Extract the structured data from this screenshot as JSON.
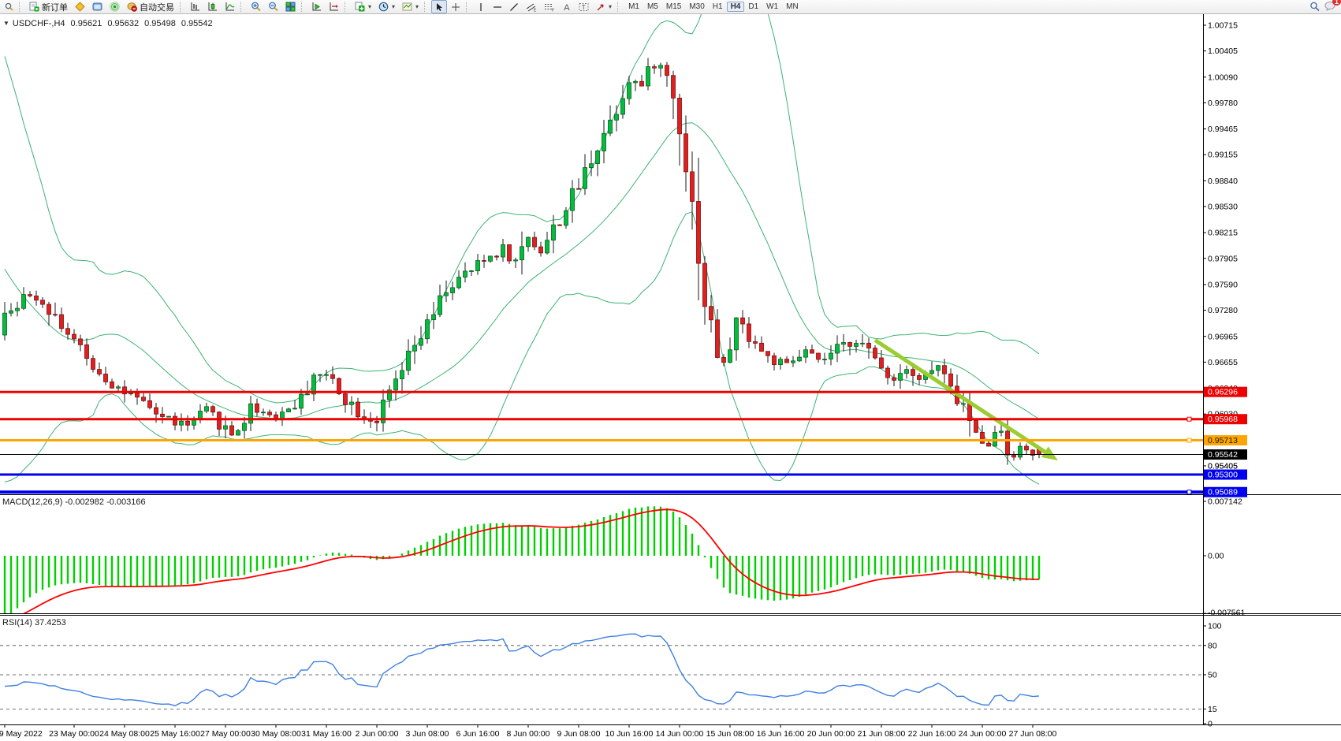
{
  "toolbar": {
    "new_order_label": "新订单",
    "autotrading_label": "自动交易",
    "timeframes": [
      "M1",
      "M5",
      "M15",
      "M30",
      "H1",
      "H4",
      "D1",
      "W1",
      "MN"
    ],
    "active_timeframe": "H4",
    "notification_badge": "1"
  },
  "chart_data": {
    "type": "candlestick",
    "symbol_label": "USDCHF-,H4",
    "current_bar": {
      "open": "0.95621",
      "high": "0.95632",
      "low": "0.95498",
      "close": "0.95542"
    },
    "price_axis_ticks": [
      "1.00715",
      "1.00405",
      "1.00090",
      "0.99780",
      "0.99465",
      "0.99155",
      "0.98840",
      "0.98530",
      "0.98215",
      "0.97905",
      "0.97590",
      "0.97280",
      "0.96965",
      "0.96655",
      "0.96340",
      "0.96030",
      "0.95720",
      "0.95405"
    ],
    "time_axis": {
      "labels": [
        "19 May 2022",
        "23 May 00:00",
        "24 May 08:00",
        "25 May 16:00",
        "27 May 00:00",
        "30 May 08:00",
        "31 May 16:00",
        "2 Jun 00:00",
        "3 Jun 08:00",
        "6 Jun 16:00",
        "8 Jun 00:00",
        "9 Jun 08:00",
        "10 Jun 16:00",
        "14 Jun 00:00",
        "15 Jun 08:00",
        "16 Jun 16:00",
        "20 Jun 00:00",
        "21 Jun 08:00",
        "22 Jun 16:00",
        "24 Jun 00:00",
        "27 Jun 08:00"
      ],
      "bar_indices": [
        0,
        11,
        19,
        27,
        35,
        43,
        51,
        59,
        67,
        75,
        83,
        91,
        99,
        107,
        115,
        123,
        131,
        139,
        147,
        155,
        163
      ]
    },
    "close_path_anchors": [
      [
        0,
        0.9728
      ],
      [
        3,
        0.9742
      ],
      [
        5,
        0.9746
      ],
      [
        7,
        0.9731
      ],
      [
        9,
        0.9712
      ],
      [
        13,
        0.9668
      ],
      [
        17,
        0.964
      ],
      [
        21,
        0.9618
      ],
      [
        25,
        0.96
      ],
      [
        29,
        0.9588
      ],
      [
        32,
        0.9607
      ],
      [
        36,
        0.9578
      ],
      [
        38,
        0.9596
      ],
      [
        39,
        0.9612
      ],
      [
        43,
        0.96
      ],
      [
        47,
        0.962
      ],
      [
        49,
        0.9652
      ],
      [
        52,
        0.9645
      ],
      [
        54,
        0.9622
      ],
      [
        57,
        0.96
      ],
      [
        59,
        0.9596
      ],
      [
        62,
        0.964
      ],
      [
        65,
        0.9683
      ],
      [
        68,
        0.9722
      ],
      [
        70,
        0.9753
      ],
      [
        73,
        0.977
      ],
      [
        76,
        0.9788
      ],
      [
        79,
        0.9803
      ],
      [
        81,
        0.9786
      ],
      [
        83,
        0.9818
      ],
      [
        85,
        0.98
      ],
      [
        88,
        0.9838
      ],
      [
        91,
        0.9878
      ],
      [
        94,
        0.9928
      ],
      [
        97,
        0.9972
      ],
      [
        99,
        1.0008
      ],
      [
        101,
        0.9998
      ],
      [
        103,
        1.0026
      ],
      [
        105,
        1.0012
      ],
      [
        107,
        0.9955
      ],
      [
        109,
        0.9855
      ],
      [
        111,
        0.9738
      ],
      [
        113,
        0.9678
      ],
      [
        114,
        0.966
      ],
      [
        116,
        0.9716
      ],
      [
        118,
        0.9698
      ],
      [
        121,
        0.967
      ],
      [
        124,
        0.966
      ],
      [
        127,
        0.9678
      ],
      [
        129,
        0.9664
      ],
      [
        132,
        0.968
      ],
      [
        135,
        0.9694
      ],
      [
        138,
        0.9668
      ],
      [
        141,
        0.9645
      ],
      [
        143,
        0.9662
      ],
      [
        145,
        0.9645
      ],
      [
        148,
        0.966
      ],
      [
        150,
        0.963
      ],
      [
        152,
        0.9612
      ],
      [
        154,
        0.9576
      ],
      [
        156,
        0.957
      ],
      [
        158,
        0.9584
      ],
      [
        159,
        0.956
      ],
      [
        160,
        0.9556
      ],
      [
        161,
        0.956
      ],
      [
        163,
        0.9557
      ],
      [
        164,
        0.95542
      ]
    ],
    "offscreen_history_anchors": [
      [
        -38,
        1.004
      ],
      [
        -28,
        1.0005
      ],
      [
        -22,
        0.999
      ],
      [
        -17,
        0.995
      ],
      [
        -12,
        0.986
      ],
      [
        -8,
        0.97
      ],
      [
        -5,
        0.958
      ],
      [
        -3,
        0.962
      ],
      [
        -1,
        0.9708
      ]
    ],
    "horizontal_lines": [
      {
        "price": 0.96296,
        "label": "0.96296",
        "color": "#EE0000",
        "width": 3,
        "handle": false,
        "text_color": "#FFFFFF"
      },
      {
        "price": 0.95968,
        "label": "0.95968",
        "color": "#EE0000",
        "width": 3,
        "handle": true,
        "text_color": "#FFFFFF"
      },
      {
        "price": 0.95713,
        "label": "0.95713",
        "color": "#FFA500",
        "width": 3,
        "handle": true,
        "text_color": "#1A1A1A"
      },
      {
        "price": 0.953,
        "label": "0.95300",
        "color": "#0000EE",
        "width": 3,
        "handle": false,
        "text_color": "#FFFFFF"
      },
      {
        "price": 0.95089,
        "label": "0.95089",
        "color": "#0000EE",
        "width": 4,
        "handle": true,
        "text_color": "#FFFFFF"
      }
    ],
    "current_price_line": {
      "price": 0.95542,
      "label": "0.95542",
      "color": "#000000",
      "width": 1,
      "text_color": "#FFFFFF"
    },
    "extra_tick": {
      "price": 0.95405,
      "label": "0.95405"
    },
    "bollinger_bands": {
      "period": 20,
      "deviation": 2,
      "color": "#3CB371"
    },
    "trend_arrow": {
      "from_bar": 138,
      "from_price": 0.9692,
      "to_bar": 167,
      "to_price": 0.9547,
      "color": "#9ACD32"
    },
    "candle_colors": {
      "bull": "#00BE3C",
      "bear": "#E02020",
      "bull_edge": "#0A5A20",
      "bear_edge": "#7A0E0E",
      "wick": "#1A1A1A"
    },
    "macd": {
      "label": "MACD(12,26,9)",
      "value": "-0.002982",
      "signal_value": "-0.003166",
      "fast": 12,
      "slow": 26,
      "signal": 9,
      "axis_ticks": [
        "0.007142",
        "0.00",
        "-0.007561"
      ],
      "axis_tick_values": [
        0.007142,
        0.0,
        -0.007561
      ],
      "histogram_color": "#00D000",
      "signal_color": "#FF0000"
    },
    "rsi": {
      "label": "RSI(14)",
      "value": "37.4253",
      "period": 14,
      "axis_ticks": [
        "100",
        "80",
        "50",
        "15",
        "0"
      ],
      "axis_tick_values": [
        100,
        80,
        50,
        15,
        0
      ],
      "dashed_levels": [
        80,
        50,
        15
      ],
      "line_color": "#4080E0"
    }
  }
}
